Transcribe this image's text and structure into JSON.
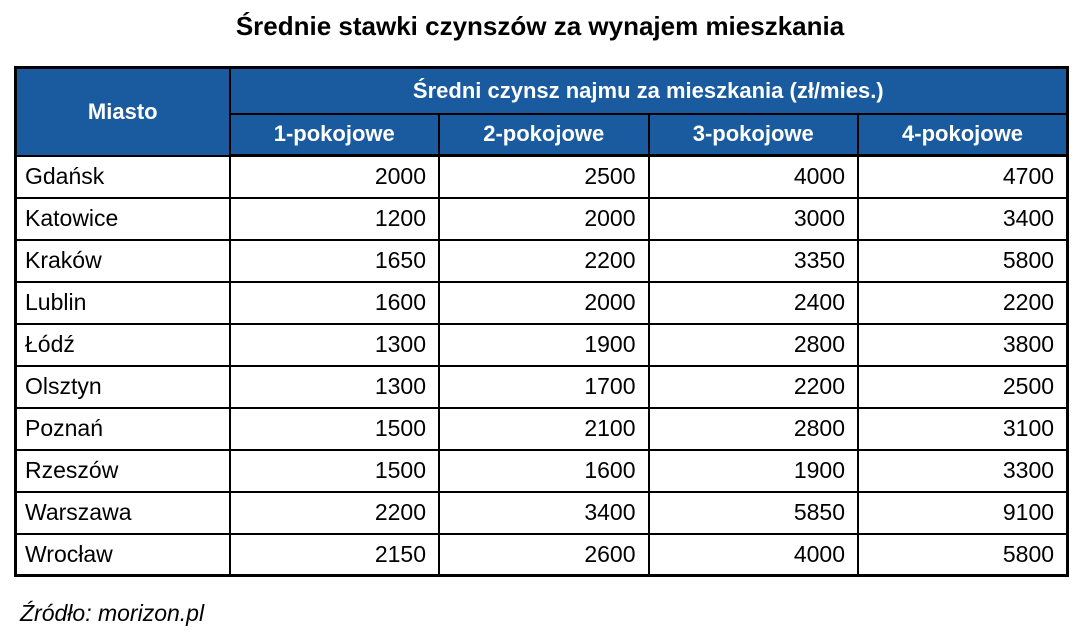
{
  "title": "Średnie stawki czynszów za wynajem mieszkania",
  "table": {
    "corner_header": "Miasto",
    "group_header": "Średni czynsz najmu za mieszkania (zł/mies.)",
    "column_headers": [
      "1-pokojowe",
      "2-pokojowe",
      "3-pokojowe",
      "4-pokojowe"
    ],
    "rows": [
      {
        "city": "Gdańsk",
        "values": [
          "2000",
          "2500",
          "4000",
          "4700"
        ]
      },
      {
        "city": "Katowice",
        "values": [
          "1200",
          "2000",
          "3000",
          "3400"
        ]
      },
      {
        "city": "Kraków",
        "values": [
          "1650",
          "2200",
          "3350",
          "5800"
        ]
      },
      {
        "city": "Lublin",
        "values": [
          "1600",
          "2000",
          "2400",
          "2200"
        ]
      },
      {
        "city": "Łódź",
        "values": [
          "1300",
          "1900",
          "2800",
          "3800"
        ]
      },
      {
        "city": "Olsztyn",
        "values": [
          "1300",
          "1700",
          "2200",
          "2500"
        ]
      },
      {
        "city": "Poznań",
        "values": [
          "1500",
          "2100",
          "2800",
          "3100"
        ]
      },
      {
        "city": "Rzeszów",
        "values": [
          "1500",
          "1600",
          "1900",
          "3300"
        ]
      },
      {
        "city": "Warszawa",
        "values": [
          "2200",
          "3400",
          "5850",
          "9100"
        ]
      },
      {
        "city": "Wrocław",
        "values": [
          "2150",
          "2600",
          "4000",
          "5800"
        ]
      }
    ]
  },
  "source": "Źródło: morizon.pl",
  "colors": {
    "header_bg": "#1a5a9e",
    "header_text": "#ffffff",
    "border": "#000000",
    "body_text": "#000000",
    "page_bg": "#ffffff"
  },
  "chart_data": {
    "type": "table",
    "title": "Średnie stawki czynszów za wynajem mieszkania",
    "group_header": "Średni czynsz najmu za mieszkania (zł/mies.)",
    "columns": [
      "Miasto",
      "1-pokojowe",
      "2-pokojowe",
      "3-pokojowe",
      "4-pokojowe"
    ],
    "rows": [
      [
        "Gdańsk",
        2000,
        2500,
        4000,
        4700
      ],
      [
        "Katowice",
        1200,
        2000,
        3000,
        3400
      ],
      [
        "Kraków",
        1650,
        2200,
        3350,
        5800
      ],
      [
        "Lublin",
        1600,
        2000,
        2400,
        2200
      ],
      [
        "Łódź",
        1300,
        1900,
        2800,
        3800
      ],
      [
        "Olsztyn",
        1300,
        1700,
        2200,
        2500
      ],
      [
        "Poznań",
        1500,
        2100,
        2800,
        3100
      ],
      [
        "Rzeszów",
        1500,
        1600,
        1900,
        3300
      ],
      [
        "Warszawa",
        2200,
        3400,
        5850,
        9100
      ],
      [
        "Wrocław",
        2150,
        2600,
        4000,
        5800
      ]
    ],
    "source": "Źródło: morizon.pl",
    "units": "zł/mies."
  }
}
